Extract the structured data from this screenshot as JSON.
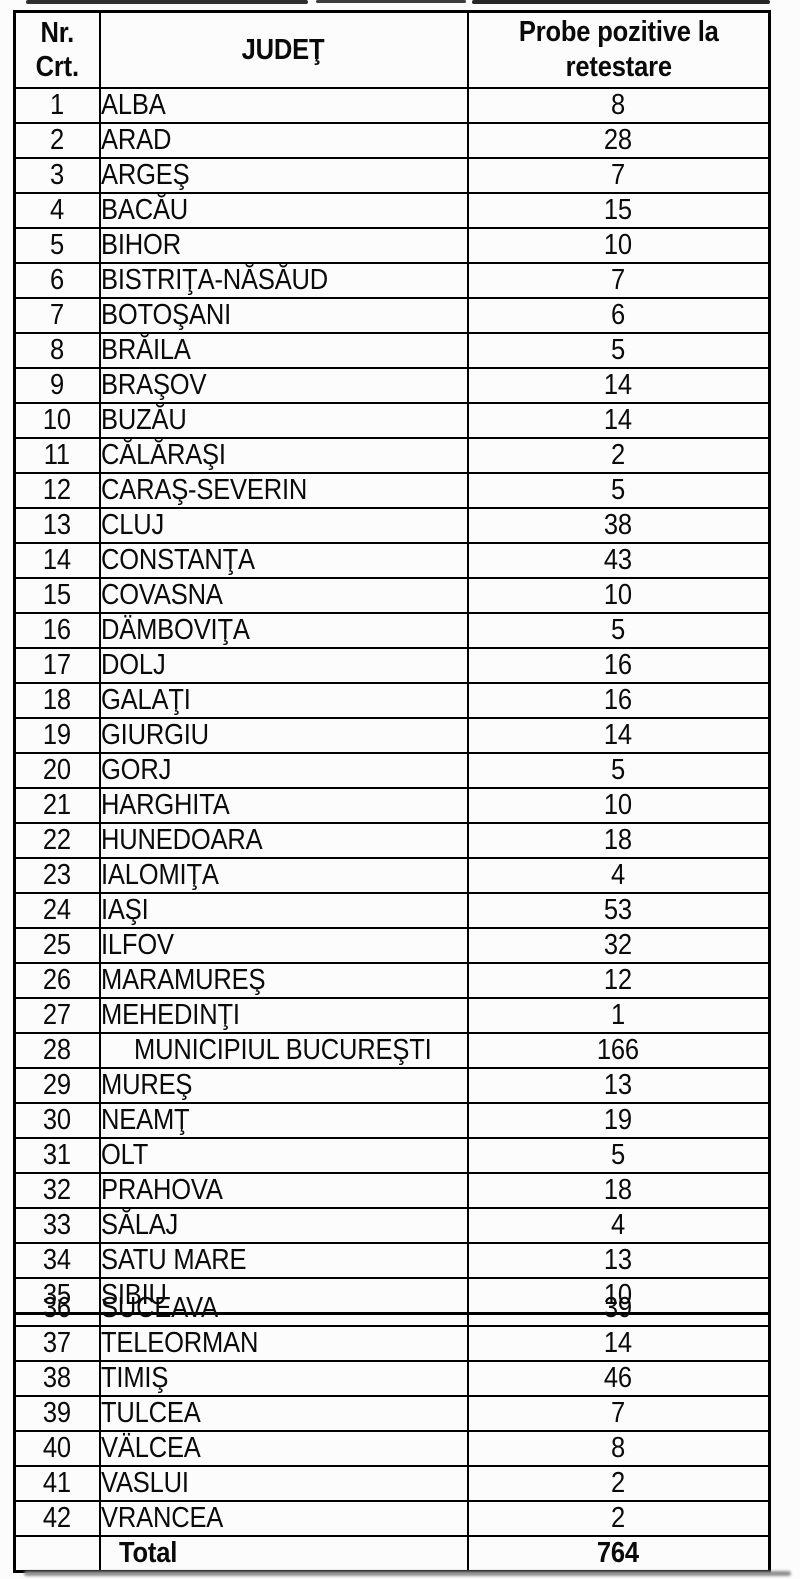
{
  "table": {
    "headers": {
      "nr": "Nr. Crt.",
      "judet": "JUDEŢ",
      "value": "Probe pozitive la retestare"
    },
    "part1_rows": [
      {
        "nr": 1,
        "judet": "ALBA",
        "value": 8
      },
      {
        "nr": 2,
        "judet": "ARAD",
        "value": 28
      },
      {
        "nr": 3,
        "judet": "ARGEŞ",
        "value": 7
      },
      {
        "nr": 4,
        "judet": "BACĂU",
        "value": 15
      },
      {
        "nr": 5,
        "judet": "BIHOR",
        "value": 10
      },
      {
        "nr": 6,
        "judet": "BISTRIŢA-NĂSĂUD",
        "value": 7
      },
      {
        "nr": 7,
        "judet": "BOTOŞANI",
        "value": 6
      },
      {
        "nr": 8,
        "judet": "BRĂILA",
        "value": 5
      },
      {
        "nr": 9,
        "judet": "BRAŞOV",
        "value": 14
      },
      {
        "nr": 10,
        "judet": "BUZĂU",
        "value": 14
      },
      {
        "nr": 11,
        "judet": "CĂLĂRAŞI",
        "value": 2
      },
      {
        "nr": 12,
        "judet": "CARAŞ-SEVERIN",
        "value": 5
      },
      {
        "nr": 13,
        "judet": "CLUJ",
        "value": 38
      },
      {
        "nr": 14,
        "judet": "CONSTANŢA",
        "value": 43
      },
      {
        "nr": 15,
        "judet": "COVASNA",
        "value": 10
      },
      {
        "nr": 16,
        "judet": "DÄMBOVIŢA",
        "value": 5
      },
      {
        "nr": 17,
        "judet": "DOLJ",
        "value": 16
      },
      {
        "nr": 18,
        "judet": "GALAŢI",
        "value": 16
      },
      {
        "nr": 19,
        "judet": "GIURGIU",
        "value": 14
      },
      {
        "nr": 20,
        "judet": "GORJ",
        "value": 5
      },
      {
        "nr": 21,
        "judet": "HARGHITA",
        "value": 10
      },
      {
        "nr": 22,
        "judet": "HUNEDOARA",
        "value": 18
      },
      {
        "nr": 23,
        "judet": "IALOMIŢA",
        "value": 4
      },
      {
        "nr": 24,
        "judet": "IAŞI",
        "value": 53
      },
      {
        "nr": 25,
        "judet": "ILFOV",
        "value": 32
      },
      {
        "nr": 26,
        "judet": "MARAMUREŞ",
        "value": 12
      },
      {
        "nr": 27,
        "judet": "MEHEDINŢI",
        "value": 1
      },
      {
        "nr": 28,
        "judet": "MUNICIPIUL BUCUREŞTI",
        "value": 166
      },
      {
        "nr": 29,
        "judet": "MUREŞ",
        "value": 13
      },
      {
        "nr": 30,
        "judet": "NEAMŢ",
        "value": 19
      },
      {
        "nr": 31,
        "judet": "OLT",
        "value": 5
      },
      {
        "nr": 32,
        "judet": "PRAHOVA",
        "value": 18
      },
      {
        "nr": 33,
        "judet": "SĂLAJ",
        "value": 4
      },
      {
        "nr": 34,
        "judet": "SATU MARE",
        "value": 13
      },
      {
        "nr": 35,
        "judet": "SIBIU",
        "value": 10
      }
    ],
    "part2_rows": [
      {
        "nr": 36,
        "judet": "SUCEAVA",
        "value": 39
      },
      {
        "nr": 37,
        "judet": "TELEORMAN",
        "value": 14
      },
      {
        "nr": 38,
        "judet": "TIMIŞ",
        "value": 46
      },
      {
        "nr": 39,
        "judet": "TULCEA",
        "value": 7
      },
      {
        "nr": 40,
        "judet": "VÄLCEA",
        "value": 8
      },
      {
        "nr": 41,
        "judet": "VASLUI",
        "value": 2
      },
      {
        "nr": 42,
        "judet": "VRANCEA",
        "value": 2
      }
    ],
    "total": {
      "label": "Total",
      "value": 764
    }
  },
  "colors": {
    "border": "#000000",
    "text": "#0a0a0a",
    "background": "#fcfcfc"
  }
}
